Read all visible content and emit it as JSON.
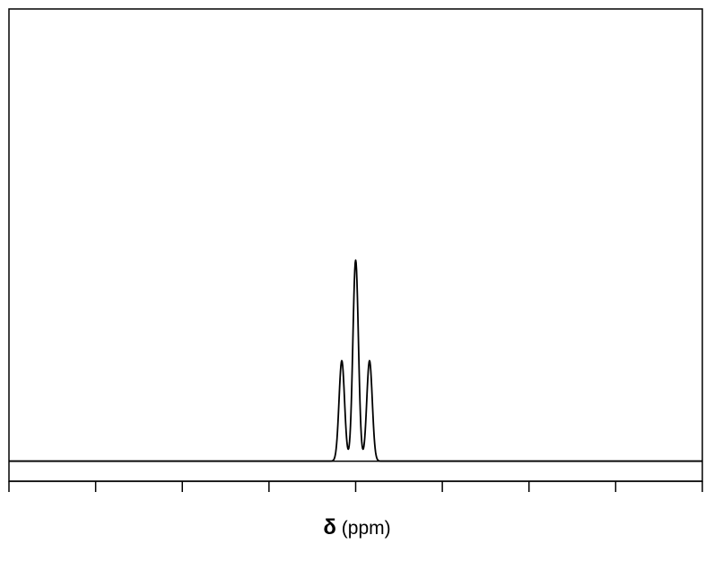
{
  "chart_data": {
    "type": "line",
    "title": "",
    "xlabel_symbol": "δ",
    "xlabel_unit": "(ppm)",
    "ylabel": "",
    "grid": false,
    "legend": "none",
    "xlim": [
      0,
      8
    ],
    "ylim": [
      -0.1,
      2.25
    ],
    "x_ticks": [
      0,
      1,
      2,
      3,
      4,
      5,
      6,
      7,
      8
    ],
    "x_tick_labels": [],
    "series": [
      {
        "peaks": [
          {
            "x": 3.84,
            "height": 0.5
          },
          {
            "x": 4.0,
            "height": 1.0
          },
          {
            "x": 4.16,
            "height": 0.5
          }
        ],
        "baseline": 0
      }
    ]
  }
}
